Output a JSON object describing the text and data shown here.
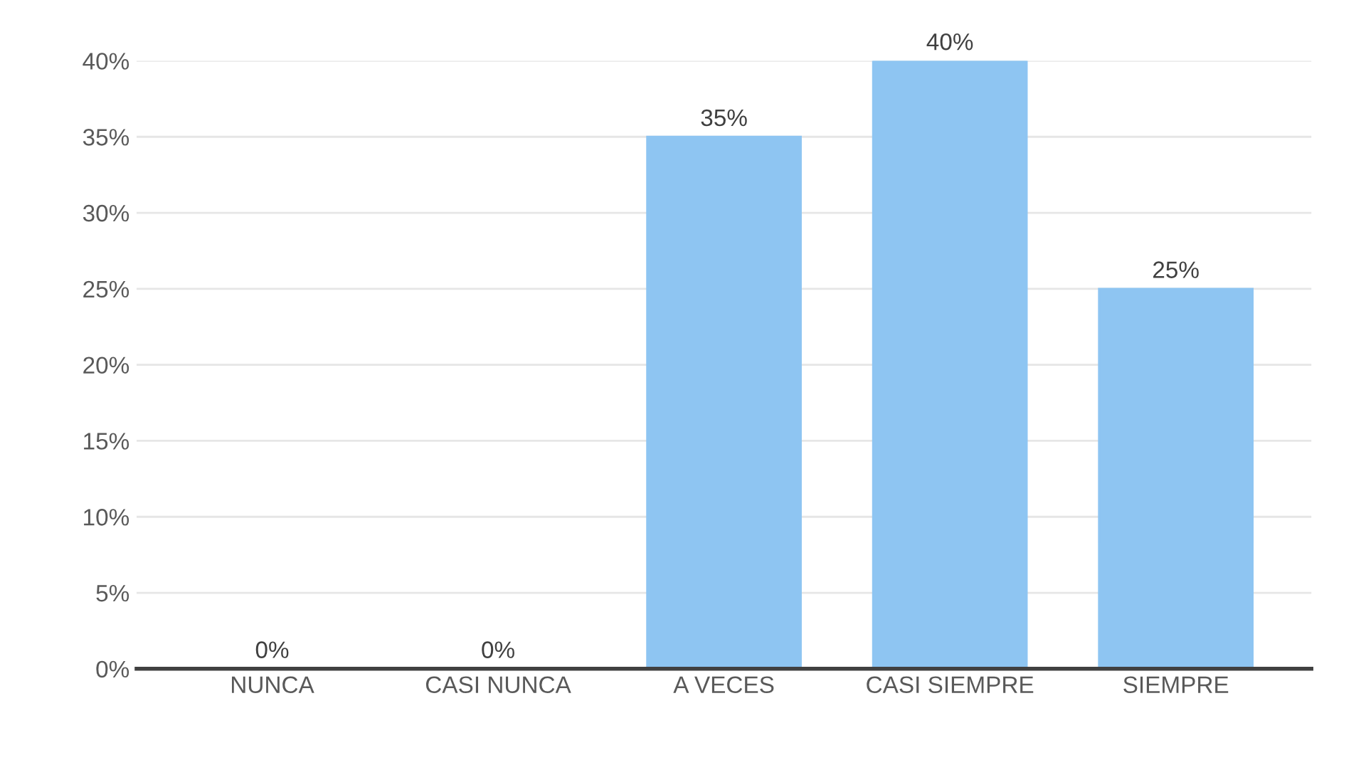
{
  "chart_data": {
    "type": "bar",
    "categories": [
      "NUNCA",
      "CASI NUNCA",
      "A VECES",
      "CASI SIEMPRE",
      "SIEMPRE"
    ],
    "values": [
      0,
      0,
      35,
      40,
      25
    ],
    "value_labels": [
      "0%",
      "0%",
      "35%",
      "40%",
      "25%"
    ],
    "color": "#8ec5f2",
    "ylim": [
      0,
      40
    ],
    "yticks": [
      {
        "value": 0,
        "label": "0%"
      },
      {
        "value": 5,
        "label": "5%"
      },
      {
        "value": 10,
        "label": "10%"
      },
      {
        "value": 15,
        "label": "15%"
      },
      {
        "value": 20,
        "label": "20%"
      },
      {
        "value": 25,
        "label": "25%"
      },
      {
        "value": 30,
        "label": "30%"
      },
      {
        "value": 35,
        "label": "35%"
      },
      {
        "value": 40,
        "label": "40%"
      }
    ],
    "grid": "y"
  }
}
